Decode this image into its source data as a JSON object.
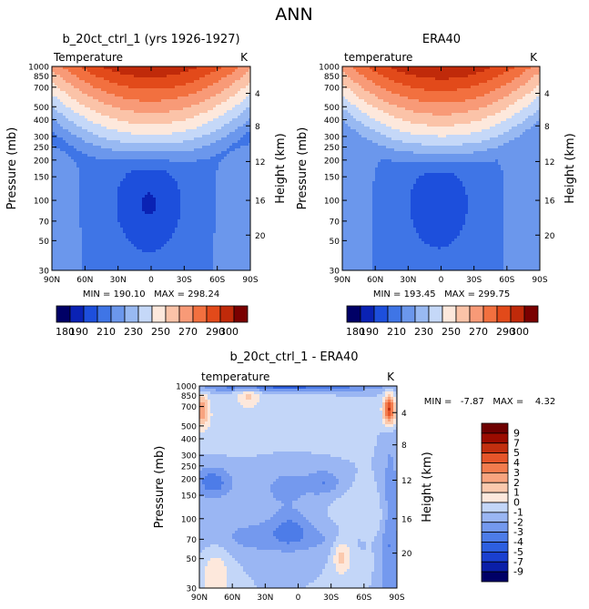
{
  "figure": {
    "title": "ANN"
  },
  "chart_data": [
    {
      "type": "heatmap",
      "title": "b_20ct_ctrl_1 (yrs 1926-1927)",
      "left_label": "Temperature",
      "units": "K",
      "ylabel": "Pressure (mb)",
      "ylabel_right": "Height (km)",
      "stats": {
        "min": "190.10",
        "max": "298.24",
        "text": "MIN = 190.10   MAX = 298.24"
      },
      "xlim": [
        90,
        -90
      ],
      "ylim": [
        1000,
        30
      ],
      "y_scale": "log",
      "x_ticks": [
        {
          "v": 90,
          "label": "90N"
        },
        {
          "v": 60,
          "label": "60N"
        },
        {
          "v": 30,
          "label": "30N"
        },
        {
          "v": 0,
          "label": "0"
        },
        {
          "v": -30,
          "label": "30S"
        },
        {
          "v": -60,
          "label": "60S"
        },
        {
          "v": -90,
          "label": "90S"
        }
      ],
      "y_ticks": [
        1000,
        850,
        700,
        500,
        400,
        300,
        250,
        200,
        150,
        100,
        70,
        50,
        30
      ],
      "height_ticks": [
        {
          "km": 4,
          "p": 630
        },
        {
          "km": 8,
          "p": 360
        },
        {
          "km": 12,
          "p": 195
        },
        {
          "km": 16,
          "p": 100
        },
        {
          "km": 20,
          "p": 55
        }
      ],
      "contour_levels": [
        180,
        190,
        200,
        210,
        220,
        230,
        240,
        250,
        260,
        270,
        280,
        290,
        300
      ]
    },
    {
      "type": "heatmap",
      "title": "ERA40",
      "left_label": "temperature",
      "units": "K",
      "ylabel": "Pressure (mb)",
      "ylabel_right": "Height (km)",
      "stats": {
        "min": "193.45",
        "max": "299.75",
        "text": "MIN = 193.45   MAX = 299.75"
      },
      "xlim": [
        90,
        -90
      ],
      "ylim": [
        1000,
        30
      ],
      "y_scale": "log",
      "x_ticks": [
        {
          "v": 90,
          "label": "90N"
        },
        {
          "v": 60,
          "label": "60N"
        },
        {
          "v": 30,
          "label": "30N"
        },
        {
          "v": 0,
          "label": "0"
        },
        {
          "v": -30,
          "label": "30S"
        },
        {
          "v": -60,
          "label": "60S"
        },
        {
          "v": -90,
          "label": "90S"
        }
      ],
      "y_ticks": [
        1000,
        850,
        700,
        500,
        400,
        300,
        250,
        200,
        150,
        100,
        70,
        50,
        30
      ],
      "height_ticks": [
        {
          "km": 4,
          "p": 630
        },
        {
          "km": 8,
          "p": 360
        },
        {
          "km": 12,
          "p": 195
        },
        {
          "km": 16,
          "p": 100
        },
        {
          "km": 20,
          "p": 55
        }
      ],
      "contour_levels": [
        180,
        190,
        200,
        210,
        220,
        230,
        240,
        250,
        260,
        270,
        280,
        290,
        300
      ]
    },
    {
      "type": "heatmap",
      "title": "b_20ct_ctrl_1 - ERA40",
      "left_label": "temperature",
      "units": "K",
      "ylabel": "Pressure (mb)",
      "ylabel_right": "Height (km)",
      "stats": {
        "min": "-7.87",
        "max": "4.32",
        "text": "MIN =   -7.87   MAX =    4.32"
      },
      "xlim": [
        90,
        -90
      ],
      "ylim": [
        1000,
        30
      ],
      "y_scale": "log",
      "x_ticks": [
        {
          "v": 90,
          "label": "90N"
        },
        {
          "v": 60,
          "label": "60N"
        },
        {
          "v": 30,
          "label": "30N"
        },
        {
          "v": 0,
          "label": "0"
        },
        {
          "v": -30,
          "label": "30S"
        },
        {
          "v": -60,
          "label": "60S"
        },
        {
          "v": -90,
          "label": "90S"
        }
      ],
      "y_ticks": [
        1000,
        850,
        700,
        500,
        400,
        300,
        250,
        200,
        150,
        100,
        70,
        50,
        30
      ],
      "height_ticks": [
        {
          "km": 4,
          "p": 630
        },
        {
          "km": 8,
          "p": 360
        },
        {
          "km": 12,
          "p": 195
        },
        {
          "km": 16,
          "p": 100
        },
        {
          "km": 20,
          "p": 55
        }
      ],
      "contour_levels": [
        -9,
        -7,
        -5,
        -4,
        -3,
        -2,
        -1,
        0,
        1,
        2,
        3,
        4,
        5,
        7,
        9
      ]
    }
  ],
  "colorbars": {
    "absolute": {
      "colors": [
        "#000066",
        "#0a22b4",
        "#1d4fdc",
        "#3f75e6",
        "#6b97ec",
        "#98b9f2",
        "#c5d8f8",
        "#fde8dc",
        "#fbc3a8",
        "#f89a77",
        "#f2703f",
        "#e24a1a",
        "#c02a0a",
        "#7a0000"
      ],
      "labels": [
        "180",
        "190",
        "210",
        "230",
        "250",
        "270",
        "290",
        "300"
      ]
    },
    "difference": {
      "colors": [
        "#000066",
        "#0a1fa8",
        "#1a40d0",
        "#2d5fe0",
        "#4d7ce8",
        "#7499ee",
        "#9ab6f3",
        "#c3d6f8",
        "#fde8dc",
        "#fbc9ad",
        "#f8a47f",
        "#f27c4e",
        "#e5552a",
        "#c22f0f",
        "#9b0c00",
        "#6e0000"
      ],
      "labels": [
        "9",
        "7",
        "5",
        "4",
        "3",
        "2",
        "1",
        "0",
        "-1",
        "-2",
        "-3",
        "-4",
        "-5",
        "-7",
        "-9"
      ]
    }
  }
}
